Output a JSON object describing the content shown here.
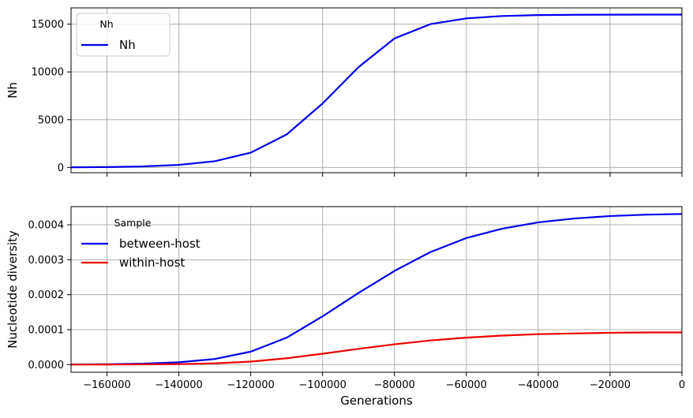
{
  "chart_data": [
    {
      "type": "line",
      "ylabel": "Nh",
      "xlim": [
        -170000,
        0
      ],
      "ylim": [
        -550,
        16700
      ],
      "grid": true,
      "legend": {
        "title": "Nh",
        "placement": "upper-left",
        "boxed": true
      },
      "xticks": [
        -160000,
        -140000,
        -120000,
        -100000,
        -80000,
        -60000,
        -40000,
        -20000,
        0
      ],
      "yticks": [
        0,
        5000,
        10000,
        15000
      ],
      "ytick_labels": [
        "0",
        "5000",
        "10000",
        "15000"
      ],
      "series": [
        {
          "name": "Nh",
          "color": "#0000ee",
          "x": [
            -170000,
            -160000,
            -150000,
            -140000,
            -130000,
            -120000,
            -110000,
            -100000,
            -90000,
            -80000,
            -70000,
            -60000,
            -50000,
            -40000,
            -30000,
            -20000,
            -10000,
            0
          ],
          "y": [
            15,
            40,
            110,
            270,
            650,
            1550,
            3450,
            6700,
            10500,
            13500,
            15000,
            15600,
            15850,
            15950,
            15980,
            15990,
            16000,
            16000
          ]
        }
      ]
    },
    {
      "type": "line",
      "xlabel": "Generations",
      "ylabel": "Nucleotide diversity",
      "xlim": [
        -170000,
        0
      ],
      "ylim": [
        -2.2e-05,
        0.000452
      ],
      "grid": true,
      "legend": {
        "title": "Sample",
        "placement": "upper-left",
        "boxed": false
      },
      "xticks": [
        -160000,
        -140000,
        -120000,
        -100000,
        -80000,
        -60000,
        -40000,
        -20000,
        0
      ],
      "xtick_labels": [
        "−160000",
        "−140000",
        "−120000",
        "−100000",
        "−80000",
        "−60000",
        "−40000",
        "−20000",
        "0"
      ],
      "yticks": [
        0,
        0.0001,
        0.0002,
        0.0003,
        0.0004
      ],
      "ytick_labels": [
        "0.0000",
        "0.0001",
        "0.0002",
        "0.0003",
        "0.0004"
      ],
      "series": [
        {
          "name": "between-host",
          "color": "#0000ee",
          "x": [
            -170000,
            -160000,
            -150000,
            -140000,
            -130000,
            -120000,
            -110000,
            -100000,
            -90000,
            -80000,
            -70000,
            -60000,
            -50000,
            -40000,
            -30000,
            -20000,
            -10000,
            0
          ],
          "y": [
            3e-07,
            9e-07,
            2.5e-06,
            6.5e-06,
            1.6e-05,
            3.7e-05,
            7.7e-05,
            0.000138,
            0.000205,
            0.000268,
            0.000322,
            0.000362,
            0.000389,
            0.000407,
            0.000418,
            0.000425,
            0.000429,
            0.000431
          ]
        },
        {
          "name": "within-host",
          "color": "#ee0000",
          "x": [
            -170000,
            -160000,
            -150000,
            -140000,
            -130000,
            -120000,
            -110000,
            -100000,
            -90000,
            -80000,
            -70000,
            -60000,
            -50000,
            -40000,
            -30000,
            -20000,
            -10000,
            0
          ],
          "y": [
            1e-07,
            2e-07,
            5e-07,
            1.3e-06,
            3.5e-06,
            8.5e-06,
            1.8e-05,
            3.1e-05,
            4.5e-05,
            5.8e-05,
            6.9e-05,
            7.7e-05,
            8.3e-05,
            8.7e-05,
            8.9e-05,
            9.1e-05,
            9.2e-05,
            9.2e-05
          ]
        }
      ]
    }
  ]
}
